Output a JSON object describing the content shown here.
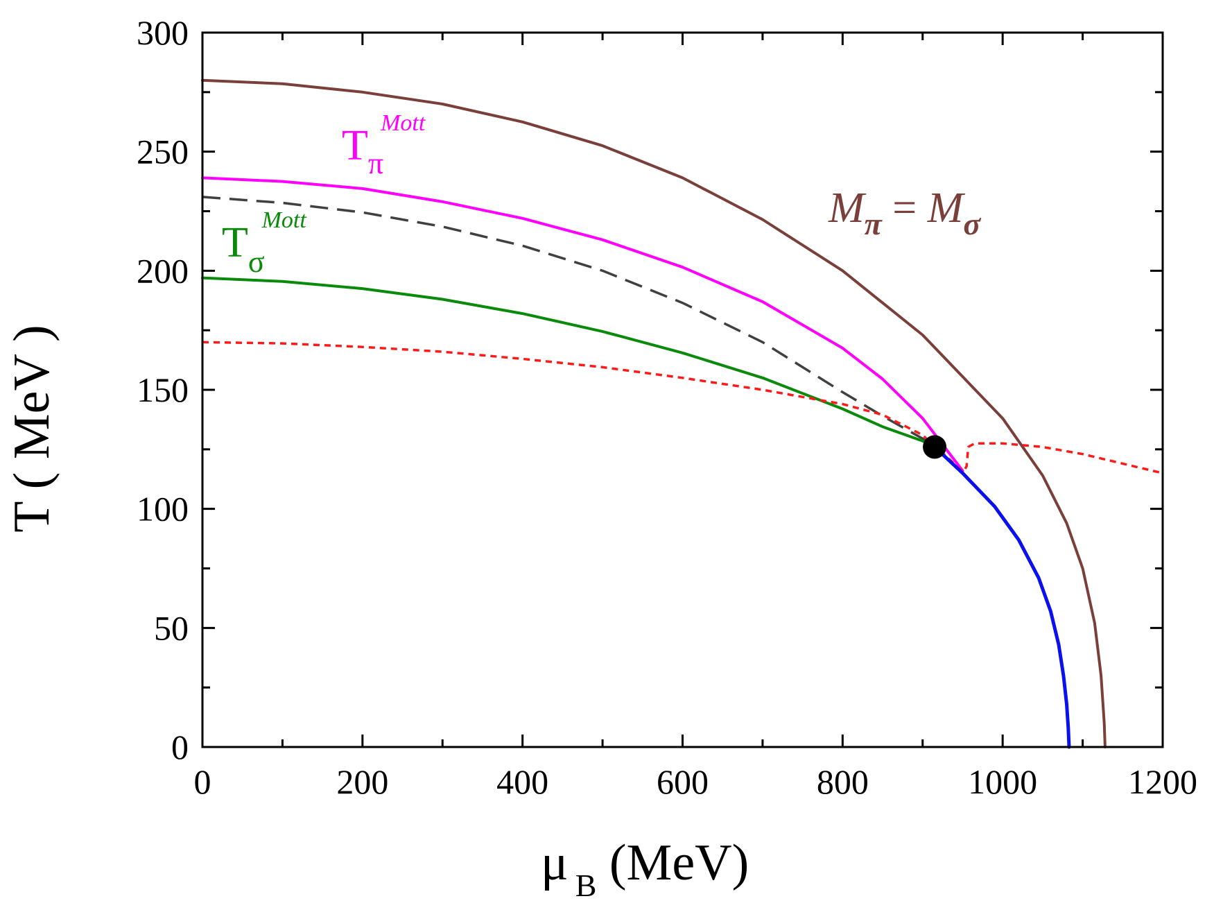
{
  "chart_data": {
    "type": "line",
    "title": "",
    "xlabel": {
      "main": "μ",
      "sub": "B",
      "rest": " (MeV)"
    },
    "ylabel": "T ( MeV )",
    "xlim": [
      0,
      1200
    ],
    "ylim": [
      0,
      300
    ],
    "xticks": [
      0,
      200,
      400,
      600,
      800,
      1000,
      1200
    ],
    "yticks": [
      0,
      50,
      100,
      150,
      200,
      250,
      300
    ],
    "grid": false,
    "series": [
      {
        "name": "M_pi = M_sigma",
        "color": "#7b3f3a",
        "style": "solid",
        "x": [
          0,
          100,
          200,
          300,
          400,
          500,
          600,
          700,
          800,
          900,
          1000,
          1050,
          1080,
          1100,
          1115,
          1123,
          1127,
          1128
        ],
        "y": [
          280,
          278.5,
          275,
          270,
          262.5,
          252.5,
          239,
          221.5,
          200,
          173,
          138,
          114,
          94,
          75,
          52,
          30,
          10,
          0
        ]
      },
      {
        "name": "T_pi^Mott",
        "color": "#ff00ff",
        "style": "solid",
        "x": [
          0,
          100,
          200,
          300,
          400,
          500,
          600,
          700,
          800,
          850,
          900,
          925,
          950
        ],
        "y": [
          239,
          237.5,
          234.5,
          229,
          222,
          213,
          201.5,
          187,
          167.5,
          154.5,
          138,
          127,
          116
        ]
      },
      {
        "name": "dashed crossover",
        "color": "#404040",
        "style": "dashed",
        "x": [
          0,
          100,
          200,
          300,
          400,
          500,
          600,
          700,
          800,
          850,
          900,
          915
        ],
        "y": [
          231,
          228.5,
          224.5,
          218.5,
          210.5,
          200,
          186.5,
          170,
          149,
          139,
          129.5,
          126
        ]
      },
      {
        "name": "T_sigma^Mott",
        "color": "#0a8a0a",
        "style": "solid",
        "x": [
          0,
          100,
          200,
          300,
          400,
          500,
          600,
          700,
          800,
          850,
          900,
          915
        ],
        "y": [
          197,
          195.5,
          192.5,
          188,
          182,
          174.5,
          165.5,
          155,
          142,
          134.5,
          128.5,
          126
        ]
      },
      {
        "name": "red dotted",
        "color": "#ff1a1a",
        "style": "dotted",
        "x": [
          0,
          100,
          200,
          300,
          400,
          500,
          600,
          700,
          800,
          850,
          900,
          915,
          930,
          945,
          952,
          955,
          957,
          965,
          1000,
          1050,
          1100,
          1150,
          1200
        ],
        "y": [
          170,
          169.5,
          168,
          166,
          163,
          159.5,
          155,
          150,
          144,
          139.5,
          131,
          126,
          122,
          117,
          116,
          118,
          126,
          127.5,
          127.5,
          126,
          123,
          119,
          115
        ]
      },
      {
        "name": "first-order line",
        "color": "#0a10ee",
        "style": "solid",
        "x": [
          915,
          950,
          990,
          1020,
          1045,
          1060,
          1070,
          1076,
          1080,
          1082,
          1083
        ],
        "y": [
          126,
          115,
          101,
          87,
          71,
          57,
          43,
          30,
          18,
          8,
          0
        ]
      }
    ],
    "critical_point": {
      "x": 915,
      "y": 126,
      "color": "#000000"
    },
    "annotations": [
      {
        "id": "mott-pi",
        "base": "T",
        "sub": "π",
        "sup": "Mott",
        "color": "#ff00ff"
      },
      {
        "id": "mott-sigma",
        "base": "T",
        "sub": "σ",
        "sup": "Mott",
        "color": "#0a8a0a"
      },
      {
        "id": "mass-eq",
        "left": "M",
        "left_sub": "π",
        "eq": " = ",
        "right": "M",
        "right_sub": "σ",
        "color": "#7b3f3a"
      }
    ]
  }
}
